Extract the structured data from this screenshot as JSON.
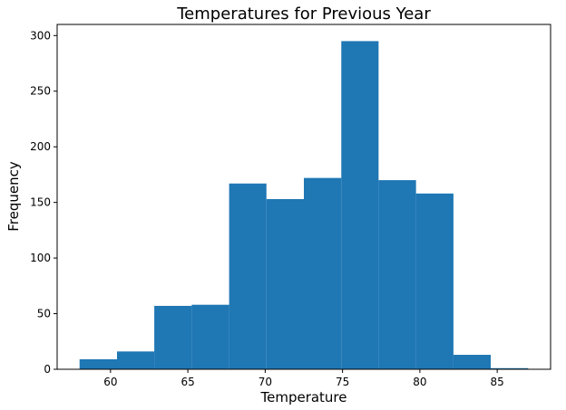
{
  "chart_data": {
    "type": "bar",
    "subtype": "histogram",
    "title": "Temperatures for Previous Year",
    "xlabel": "Temperature",
    "ylabel": "Frequency",
    "xlim": [
      56.55,
      88.45
    ],
    "ylim": [
      0,
      310
    ],
    "xticks": [
      60,
      65,
      70,
      75,
      80,
      85
    ],
    "yticks": [
      0,
      50,
      100,
      150,
      200,
      250,
      300
    ],
    "grid": false,
    "bar_color": "#1f77b4",
    "bins": [
      {
        "x0": 58.0,
        "x1": 60.42,
        "count": 9
      },
      {
        "x0": 60.42,
        "x1": 62.83,
        "count": 16
      },
      {
        "x0": 62.83,
        "x1": 65.25,
        "count": 57
      },
      {
        "x0": 65.25,
        "x1": 67.67,
        "count": 58
      },
      {
        "x0": 67.67,
        "x1": 70.08,
        "count": 167
      },
      {
        "x0": 70.08,
        "x1": 72.5,
        "count": 153
      },
      {
        "x0": 72.5,
        "x1": 74.92,
        "count": 172
      },
      {
        "x0": 74.92,
        "x1": 77.33,
        "count": 295
      },
      {
        "x0": 77.33,
        "x1": 79.75,
        "count": 170
      },
      {
        "x0": 79.75,
        "x1": 82.17,
        "count": 158
      },
      {
        "x0": 82.17,
        "x1": 84.58,
        "count": 13
      },
      {
        "x0": 84.58,
        "x1": 87.0,
        "count": 1
      }
    ]
  }
}
